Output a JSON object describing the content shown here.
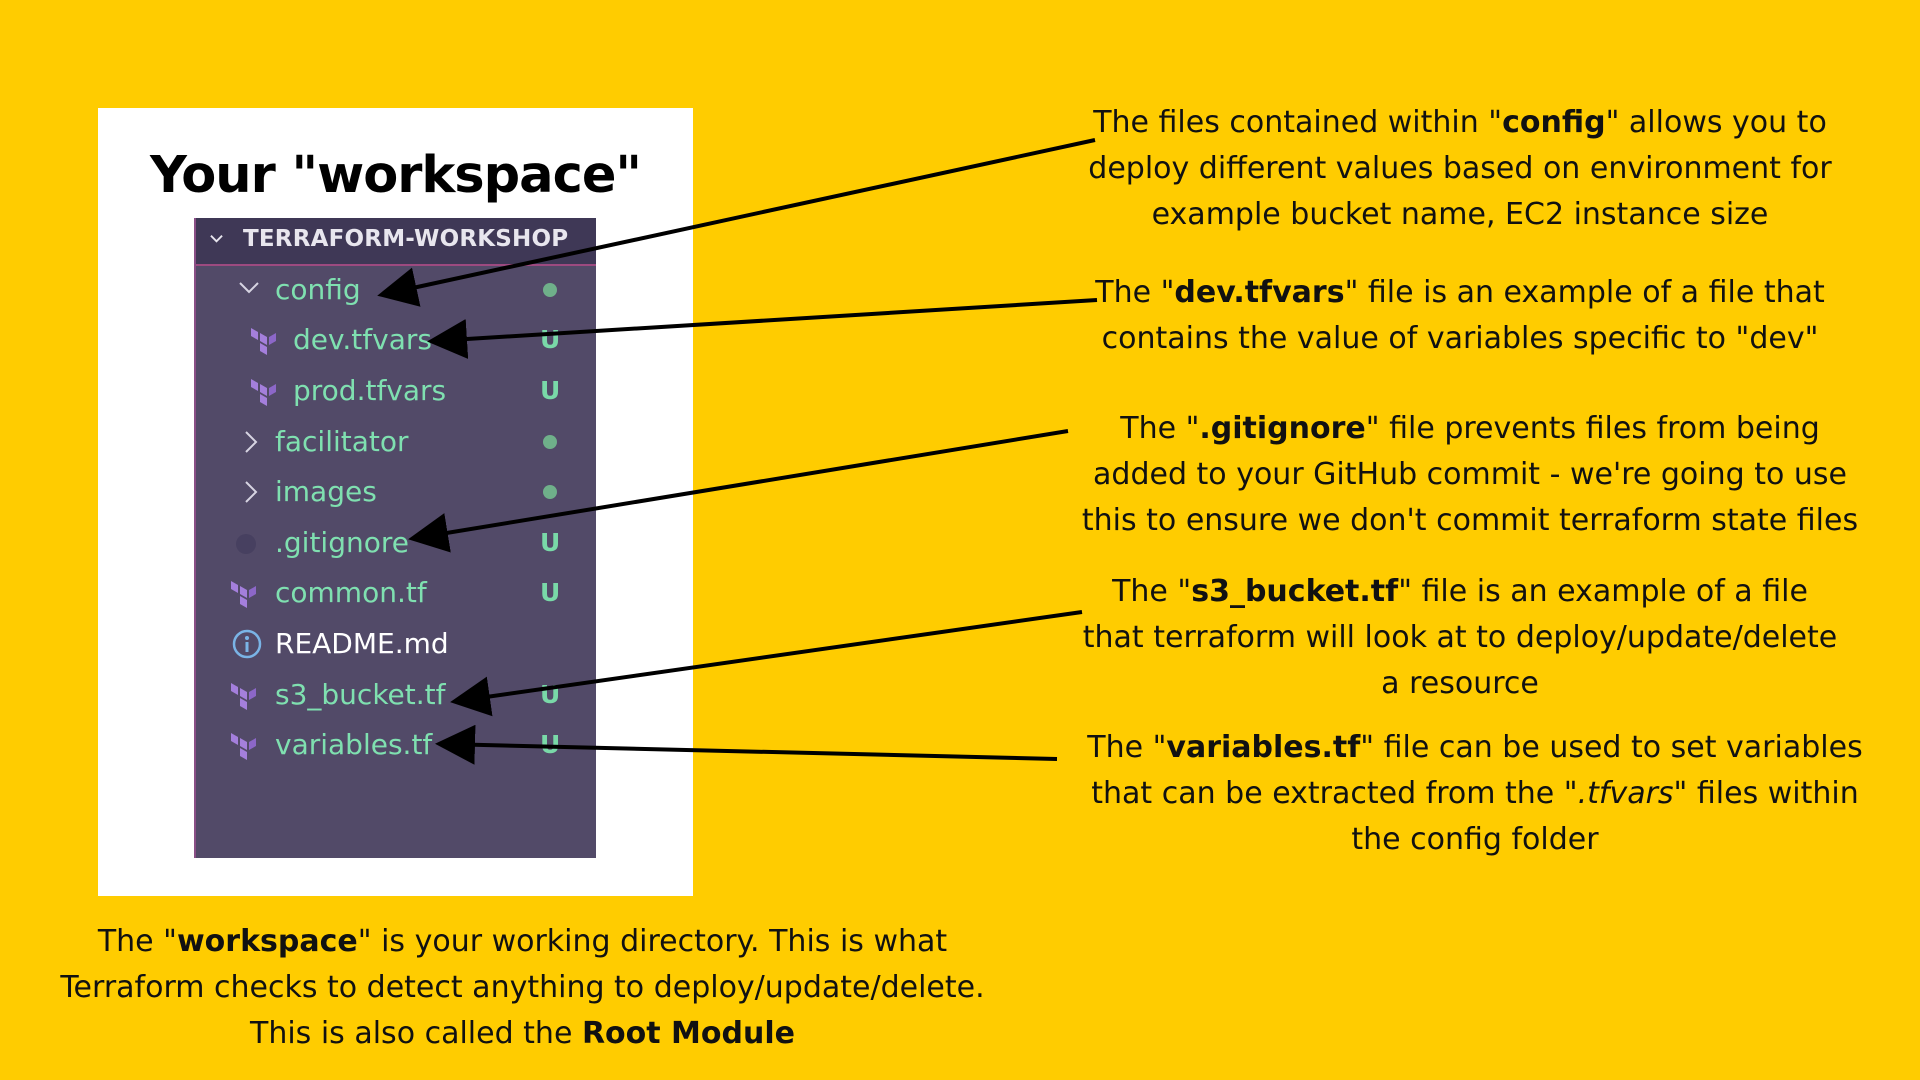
{
  "card": {
    "title": "Your \"workspace\""
  },
  "explorer": {
    "header": "TERRAFORM-WORKSHOP",
    "items": [
      {
        "label": "config",
        "status": "",
        "icon": "chevron-down-icon"
      },
      {
        "label": "dev.tfvars",
        "status": "U",
        "icon": "terraform-icon"
      },
      {
        "label": "prod.tfvars",
        "status": "U",
        "icon": "terraform-icon"
      },
      {
        "label": "facilitator",
        "status": "",
        "icon": "chevron-right-icon"
      },
      {
        "label": "images",
        "status": "",
        "icon": "chevron-right-icon"
      },
      {
        "label": ".gitignore",
        "status": "U",
        "icon": "gitignore-icon"
      },
      {
        "label": "common.tf",
        "status": "U",
        "icon": "terraform-icon"
      },
      {
        "label": "README.md",
        "status": "",
        "icon": "info-icon"
      },
      {
        "label": "s3_bucket.tf",
        "status": "U",
        "icon": "terraform-icon"
      },
      {
        "label": "variables.tf",
        "status": "U",
        "icon": "terraform-icon"
      }
    ]
  },
  "annotations": {
    "config": {
      "pre": "The files contained within \"",
      "bold": "config",
      "post": "\" allows you to deploy different values based on environment for example bucket name, EC2 instance size"
    },
    "dev": {
      "pre": "The \"",
      "bold": "dev.tfvars",
      "post": "\" file is an example of a file that contains the value of variables specific to \"dev\""
    },
    "gitignore": {
      "pre": "The \"",
      "bold": ".gitignore",
      "post": "\" file prevents files from being added to your GitHub commit - we're going to use this to ensure we don't commit terraform state files"
    },
    "s3": {
      "pre": "The \"",
      "bold": "s3_bucket.tf",
      "post": "\" file is an example of a file that terraform will look at to deploy/update/delete a resource"
    },
    "variables": {
      "pre": "The \"",
      "bold": "variables.tf",
      "mid": "\" file can be used to set variables that can be extracted from the \"",
      "italic": ".tfvars",
      "post": "\" files within the config folder"
    }
  },
  "footer": {
    "pre": "The \"",
    "bold": "workspace",
    "mid": "\" is your working directory. This is what Terraform checks to detect anything to deploy/update/delete. This is also called the ",
    "bold2": "Root Module"
  },
  "colors": {
    "background": "#FFCC00",
    "explorer": "#524a68",
    "git_untracked": "#7fe0b0",
    "terraform_icon": "#a47fdc"
  }
}
